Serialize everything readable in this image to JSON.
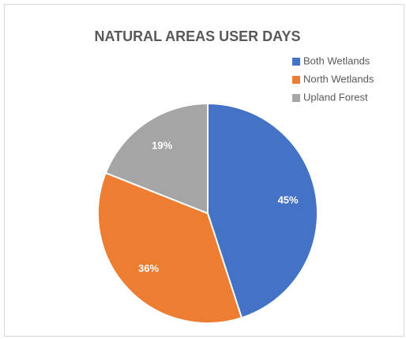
{
  "chart_data": {
    "type": "pie",
    "title": "NATURAL AREAS USER DAYS",
    "categories": [
      "Both Wetlands",
      "North Wetlands",
      "Upland Forest"
    ],
    "values": [
      45,
      36,
      19
    ],
    "value_labels": [
      "45%",
      "36%",
      "19%"
    ],
    "colors": [
      "#4472c4",
      "#ed7d31",
      "#a5a5a5"
    ],
    "legend": "top-right"
  }
}
